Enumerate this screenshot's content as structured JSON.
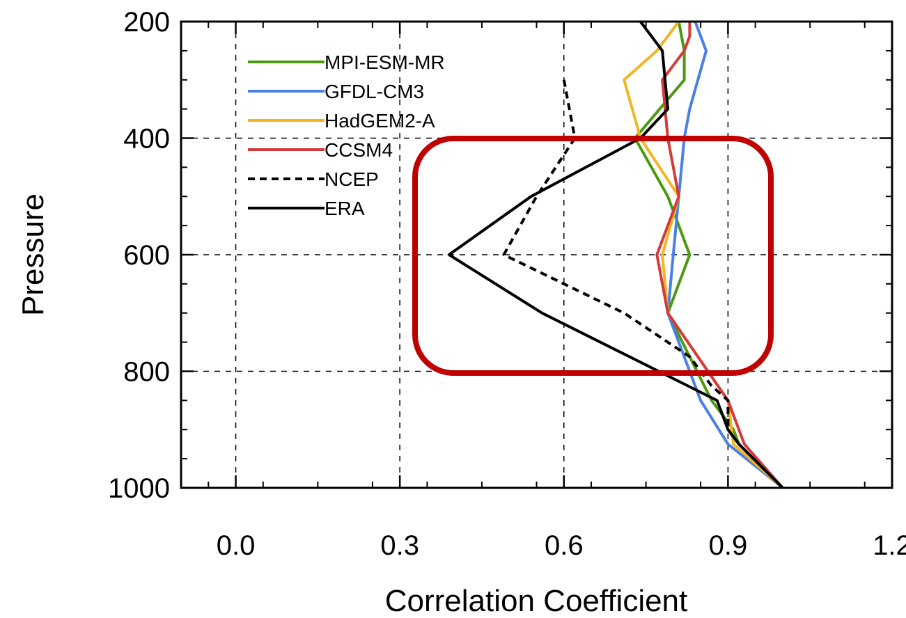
{
  "chart_data": {
    "type": "line",
    "xlabel": "Correlation Coefficient",
    "ylabel": "Pressure",
    "xlim": [
      -0.1,
      1.2
    ],
    "ylim": [
      1000,
      200
    ],
    "x_ticks": [
      0.0,
      0.3,
      0.6,
      0.9,
      1.2
    ],
    "x_tick_labels": [
      "0.0",
      "0.3",
      "0.6",
      "0.9",
      "1.2"
    ],
    "y_ticks": [
      200,
      400,
      600,
      800,
      1000
    ],
    "y_tick_labels": [
      "200",
      "400",
      "600",
      "800",
      "1000"
    ],
    "grid": "dashed",
    "legend_position": "top-left",
    "series": [
      {
        "name": "MPI-ESM-MR",
        "color": "#4a9a0f",
        "dash": false,
        "x": [
          0.81,
          0.82,
          0.82,
          0.73,
          0.79,
          0.83,
          0.79,
          0.87,
          0.91,
          0.92,
          1.0
        ],
        "y": [
          200,
          250,
          300,
          400,
          500,
          600,
          700,
          850,
          900,
          925,
          1000
        ]
      },
      {
        "name": "GFDL-CM3",
        "color": "#4a7fe6",
        "dash": false,
        "x": [
          0.84,
          0.86,
          0.83,
          0.82,
          0.81,
          0.8,
          0.79,
          0.85,
          0.9,
          1.0
        ],
        "y": [
          200,
          250,
          350,
          400,
          500,
          600,
          700,
          850,
          925,
          1000
        ]
      },
      {
        "name": "HadGEM2-A",
        "color": "#f2b523",
        "dash": false,
        "x": [
          0.81,
          0.77,
          0.71,
          0.74,
          0.81,
          0.78,
          0.79,
          0.9,
          0.91,
          1.0
        ],
        "y": [
          200,
          250,
          300,
          400,
          500,
          600,
          700,
          850,
          925,
          1000
        ]
      },
      {
        "name": "CCSM4",
        "color": "#d33b3b",
        "dash": false,
        "x": [
          0.83,
          0.83,
          0.82,
          0.78,
          0.79,
          0.81,
          0.77,
          0.79,
          0.9,
          0.93,
          1.0
        ],
        "y": [
          200,
          225,
          250,
          300,
          400,
          500,
          600,
          700,
          850,
          925,
          1000
        ]
      },
      {
        "name": "NCEP",
        "color": "#000000",
        "dash": true,
        "x": [
          0.6,
          0.62,
          0.55,
          0.49,
          0.71,
          0.83,
          0.87,
          0.9,
          0.9,
          0.92,
          1.0
        ],
        "y": [
          300,
          400,
          500,
          600,
          700,
          775,
          825,
          850,
          900,
          925,
          1000
        ]
      },
      {
        "name": "ERA",
        "color": "#000000",
        "dash": false,
        "x": [
          0.74,
          0.78,
          0.79,
          0.74,
          0.54,
          0.39,
          0.56,
          0.88,
          0.9,
          0.92,
          1.0
        ],
        "y": [
          200,
          250,
          350,
          400,
          500,
          600,
          700,
          850,
          900,
          925,
          1000
        ]
      }
    ]
  }
}
